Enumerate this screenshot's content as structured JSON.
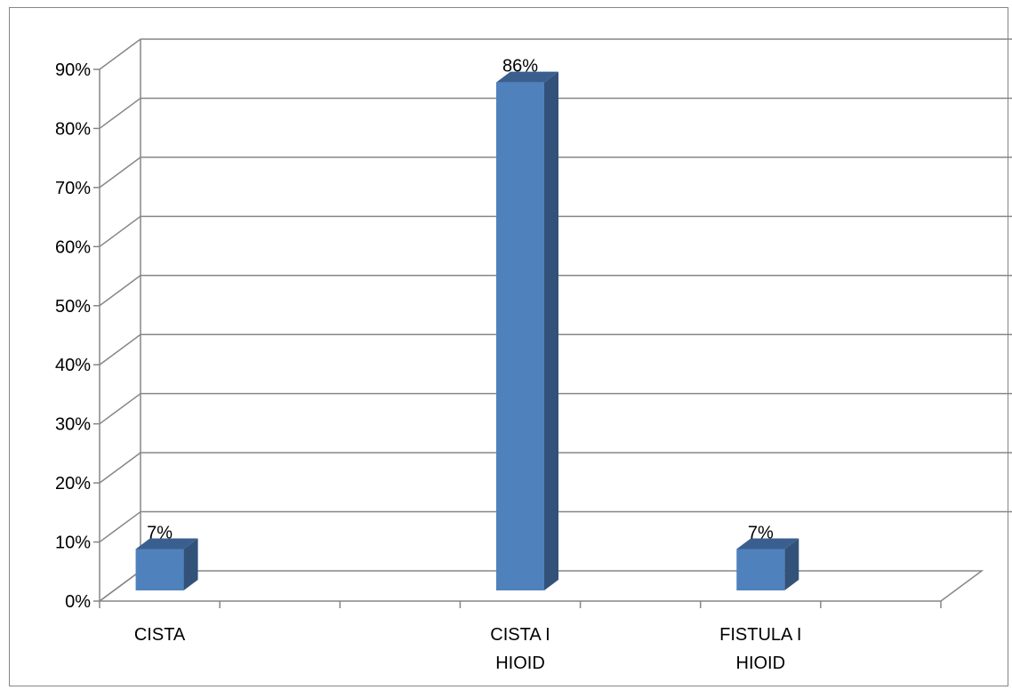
{
  "chart_data": {
    "type": "bar",
    "style": "3d-column",
    "categories": [
      [
        "CISTA"
      ],
      [
        "CISTA I",
        "HIOID"
      ],
      [
        "FISTULA I",
        "HIOID"
      ]
    ],
    "values": [
      7,
      86,
      7
    ],
    "value_labels": [
      "7%",
      "86%",
      "7%"
    ],
    "y_ticks": [
      "0%",
      "10%",
      "20%",
      "30%",
      "40%",
      "50%",
      "60%",
      "70%",
      "80%",
      "90%"
    ],
    "ylim": [
      0,
      90
    ],
    "grid": true,
    "legend": "none",
    "colors": {
      "bar_front": "#4f81bd",
      "bar_side": "#32527a",
      "bar_top": "#3a5f8f",
      "grid": "#868686",
      "axis": "#868686"
    }
  }
}
